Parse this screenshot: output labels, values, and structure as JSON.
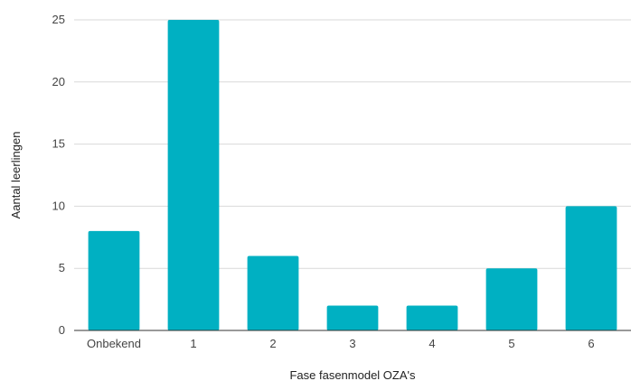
{
  "chart_data": {
    "type": "bar",
    "title": "",
    "xlabel": "Fase fasenmodel OZA's",
    "ylabel": "Aantal leerlingen",
    "categories": [
      "Onbekend",
      "1",
      "2",
      "3",
      "4",
      "5",
      "6"
    ],
    "values": [
      8,
      25,
      6,
      2,
      2,
      5,
      10
    ],
    "ylim": [
      0,
      25
    ],
    "yticks": [
      0,
      5,
      10,
      15,
      20,
      25
    ],
    "grid": true,
    "legend": "none",
    "bar_color": "#00b0c2",
    "grid_color": "#d9d9d9",
    "axis_color": "#333333"
  }
}
